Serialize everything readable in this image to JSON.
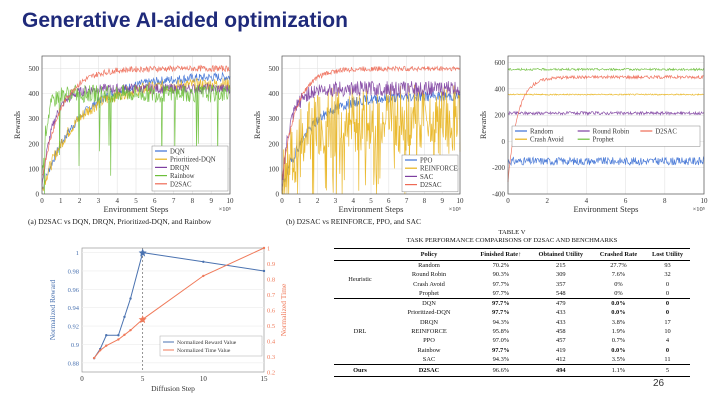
{
  "slide": {
    "title": "Generative AI-aided optimization",
    "page_number": "26"
  },
  "chart_data": [
    {
      "type": "line",
      "ylabel": "Rewards",
      "xlabel": "Environment Steps",
      "x_exponent": "×10⁵",
      "caption": "(a) D2SAC vs DQN, DRQN, Prioritized-DQN, and Rainbow",
      "xlim": [
        0,
        10
      ],
      "ylim": [
        0,
        550
      ],
      "xticks": [
        "0",
        "1",
        "2",
        "3",
        "4",
        "5",
        "6",
        "7",
        "8",
        "9",
        "10"
      ],
      "yticks": [
        "0",
        "100",
        "200",
        "300",
        "400",
        "500"
      ],
      "legend_position": "bottom-right",
      "series": [
        {
          "name": "DQN",
          "color": "#3b6fd4",
          "start": 20,
          "end": 470,
          "tau": 2.0,
          "noise": 18
        },
        {
          "name": "Prioritized-DQN",
          "color": "#e8b21a",
          "start": 20,
          "end": 440,
          "tau": 1.8,
          "noise": 25
        },
        {
          "name": "DRQN",
          "color": "#7d3fa0",
          "start": 30,
          "end": 420,
          "tau": 0.6,
          "noise": 20
        },
        {
          "name": "Rainbow",
          "color": "#6cbf3a",
          "start": 60,
          "end": 400,
          "tau": 0.25,
          "noise": 35
        },
        {
          "name": "D2SAC",
          "color": "#ee6a55",
          "start": 60,
          "end": 500,
          "tau": 1.0,
          "noise": 12
        }
      ]
    },
    {
      "type": "line",
      "ylabel": "Rewards",
      "xlabel": "Environment Steps",
      "x_exponent": "×10⁵",
      "caption": "(b) D2SAC vs REINFORCE, PPO, and SAC",
      "xlim": [
        0,
        10
      ],
      "ylim": [
        0,
        550
      ],
      "xticks": [
        "0",
        "1",
        "2",
        "3",
        "4",
        "5",
        "6",
        "7",
        "8",
        "9",
        "10"
      ],
      "yticks": [
        "0",
        "100",
        "200",
        "300",
        "400",
        "500"
      ],
      "legend_position": "bottom-right",
      "series": [
        {
          "name": "PPO",
          "color": "#3b6fd4",
          "start": 20,
          "end": 390,
          "tau": 1.5,
          "noise": 20
        },
        {
          "name": "REINFORCE",
          "color": "#e8b21a",
          "start": 20,
          "end": 300,
          "tau": 1.0,
          "noise": 140
        },
        {
          "name": "SAC",
          "color": "#7d3fa0",
          "start": 40,
          "end": 420,
          "tau": 0.5,
          "noise": 30
        },
        {
          "name": "D2SAC",
          "color": "#ee6a55",
          "start": 60,
          "end": 500,
          "tau": 0.8,
          "noise": 10
        }
      ]
    },
    {
      "type": "line",
      "ylabel": "Rewards",
      "xlabel": "Environment Steps",
      "x_exponent": "×10⁵",
      "xlim": [
        0,
        10
      ],
      "ylim": [
        -400,
        650
      ],
      "xticks": [
        "0",
        "2",
        "4",
        "6",
        "8",
        "10"
      ],
      "yticks": [
        "-400",
        "-200",
        "0",
        "200",
        "400",
        "600"
      ],
      "legend_position": "lower-middle",
      "series": [
        {
          "name": "Random",
          "color": "#3b6fd4",
          "start": -150,
          "end": -150,
          "tau": 1,
          "noise": 30
        },
        {
          "name": "Round Robin",
          "color": "#7d3fa0",
          "start": 215,
          "end": 215,
          "tau": 1,
          "noise": 12
        },
        {
          "name": "D2SAC",
          "color": "#ee6a55",
          "start": -300,
          "end": 490,
          "tau": 0.5,
          "noise": 12
        },
        {
          "name": "Crash Avoid",
          "color": "#e8b21a",
          "start": 357,
          "end": 357,
          "tau": 1,
          "noise": 5
        },
        {
          "name": "Prophet",
          "color": "#6cbf3a",
          "start": 548,
          "end": 548,
          "tau": 1,
          "noise": 8
        }
      ]
    },
    {
      "type": "line",
      "xlabel": "Diffusion Step",
      "ylabel": "Normalized Reward",
      "ylabel_right": "Normalized Time",
      "xlim": [
        0,
        15
      ],
      "ylim": [
        0.87,
        1.005
      ],
      "ylim_right": [
        0.2,
        1.0
      ],
      "xticks": [
        "0",
        "5",
        "10",
        "15"
      ],
      "yticks": [
        "0.88",
        "0.9",
        "0.92",
        "0.94",
        "0.96",
        "0.98",
        "1"
      ],
      "yticks_right": [
        "0.2",
        "0.3",
        "0.4",
        "0.5",
        "0.6",
        "0.7",
        "0.8",
        "0.9",
        "1"
      ],
      "legend_position": "bottom-right",
      "series": [
        {
          "name": "Normalized Reward Value",
          "color": "#4a72b0",
          "axis": "left",
          "x": [
            1,
            1.5,
            2,
            3,
            3.5,
            4,
            5,
            10,
            15
          ],
          "y": [
            0.885,
            0.895,
            0.91,
            0.91,
            0.93,
            0.95,
            1.0,
            0.99,
            0.98
          ]
        },
        {
          "name": "Normalized Time Value",
          "color": "#f07a5a",
          "axis": "right",
          "x": [
            1,
            1.5,
            2,
            3,
            3.5,
            4,
            5,
            10,
            15
          ],
          "y": [
            0.29,
            0.34,
            0.37,
            0.41,
            0.44,
            0.47,
            0.54,
            0.82,
            1.0
          ]
        }
      ],
      "highlight_x": 5
    }
  ],
  "table": {
    "title": "TABLE V",
    "subtitle": "TASK PERFORMANCE COMPARISONS OF D2SAC AND BENCHMARKS",
    "headers": [
      "",
      "Policy",
      "Finished Rate↑",
      "Obtained Utility",
      "Crashed Rate",
      "Lost Utility"
    ],
    "groups": [
      {
        "name": "Heuristic",
        "rows": [
          [
            "Random",
            "70.2%",
            "215",
            "27.7%",
            "93"
          ],
          [
            "Round Robin",
            "90.3%",
            "309",
            "7.6%",
            "32"
          ],
          [
            "Crash Avoid",
            "97.7%",
            "357",
            "0%",
            "0"
          ],
          [
            "Prophet",
            "97.7%",
            "548",
            "0%",
            "0"
          ]
        ]
      },
      {
        "name": "DRL",
        "rows": [
          [
            "DQN",
            "97.7%",
            "479",
            "0.0%",
            "0"
          ],
          [
            "Prioritized-DQN",
            "97.7%",
            "433",
            "0.0%",
            "0"
          ],
          [
            "DRQN",
            "94.3%",
            "433",
            "3.8%",
            "17"
          ],
          [
            "REINFORCE",
            "95.8%",
            "458",
            "1.9%",
            "10"
          ],
          [
            "PPO",
            "97.0%",
            "457",
            "0.7%",
            "4"
          ],
          [
            "Rainbow",
            "97.7%",
            "419",
            "0.0%",
            "0"
          ],
          [
            "SAC",
            "94.3%",
            "412",
            "3.5%",
            "11"
          ]
        ]
      },
      {
        "name": "Ours",
        "rows": [
          [
            "D2SAC",
            "96.6%",
            "494",
            "1.1%",
            "5"
          ]
        ]
      }
    ]
  }
}
